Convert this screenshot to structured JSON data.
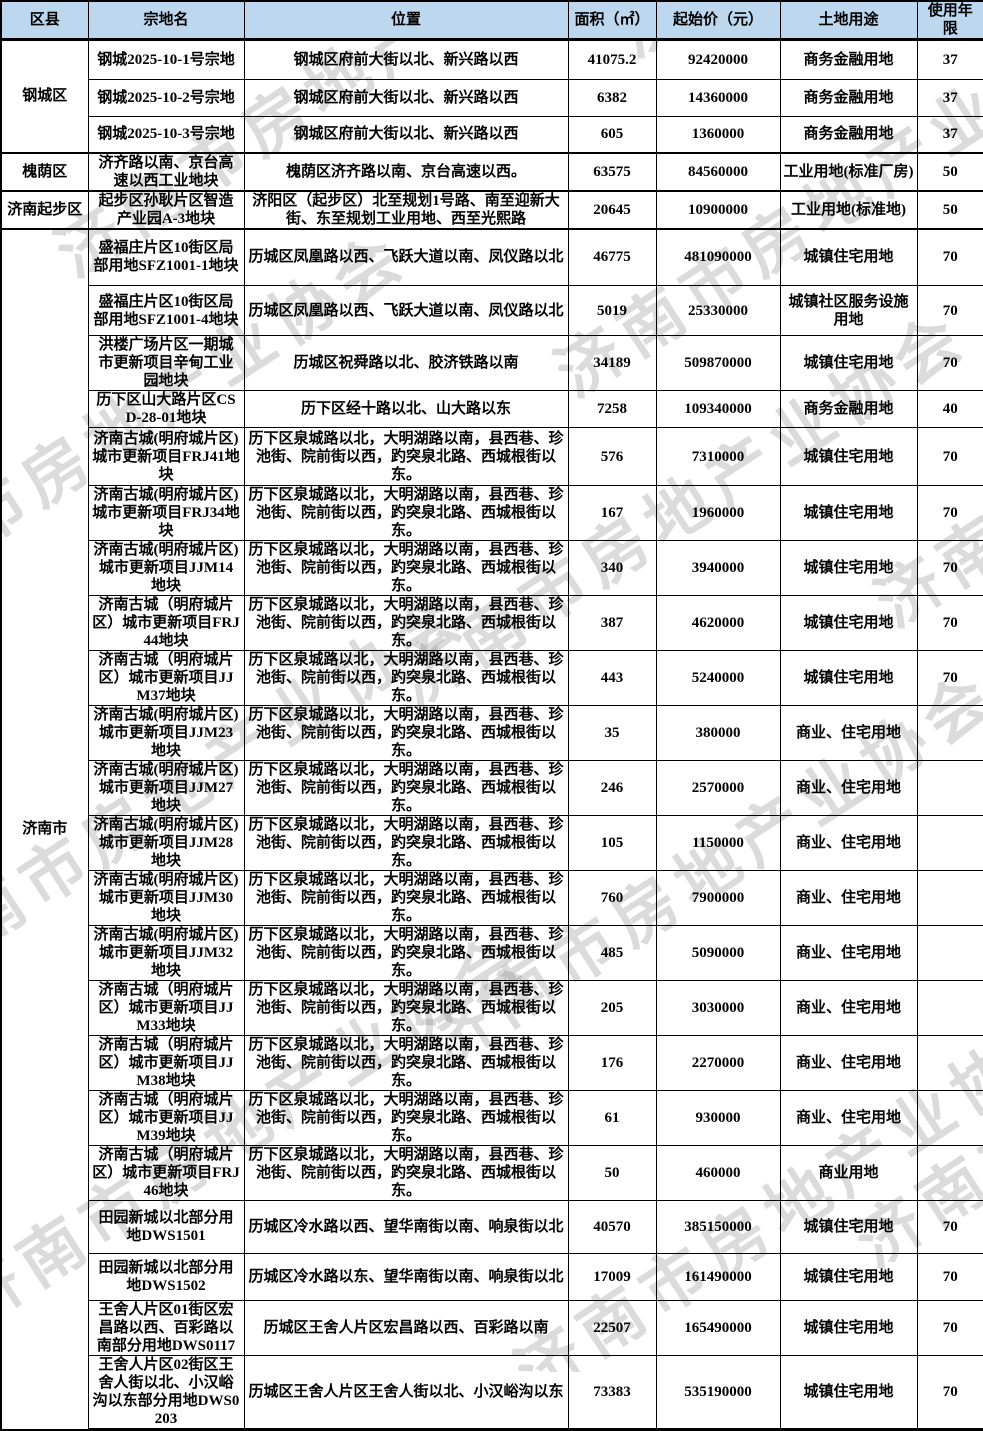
{
  "watermark": {
    "text": "济南市房地产业协会",
    "color_hint": "#d5d5d5"
  },
  "colors": {
    "header_bg": "#bdd7ee",
    "border": "#000000",
    "text": "#000000"
  },
  "table": {
    "columns": [
      {
        "label": "区县"
      },
      {
        "label": "宗地名"
      },
      {
        "label": "位置"
      },
      {
        "label": "面积（㎡）"
      },
      {
        "label": "起始价（元）"
      },
      {
        "label": "土地用途"
      },
      {
        "label": "使用年限"
      }
    ],
    "district_groups": [
      {
        "label": "钢城区",
        "rows": 3
      },
      {
        "label": "槐荫区",
        "rows": 1
      },
      {
        "label": "济南起步区",
        "rows": 1
      },
      {
        "label": "济南市",
        "rows": 22
      }
    ],
    "rows": [
      {
        "name": "钢城2025-10-1号宗地",
        "location": "钢城区府前大街以北、新兴路以西",
        "area": "41075.2",
        "price": "92420000",
        "use": "商务金融用地",
        "years": "37"
      },
      {
        "name": "钢城2025-10-2号宗地",
        "location": "钢城区府前大街以北、新兴路以西",
        "area": "6382",
        "price": "14360000",
        "use": "商务金融用地",
        "years": "37"
      },
      {
        "name": "钢城2025-10-3号宗地",
        "location": "钢城区府前大街以北、新兴路以西",
        "area": "605",
        "price": "1360000",
        "use": "商务金融用地",
        "years": "37"
      },
      {
        "name": "济齐路以南、京台高速以西工业地块",
        "location": "槐荫区济齐路以南、京台高速以西。",
        "area": "63575",
        "price": "84560000",
        "use": "工业用地(标准厂房)",
        "years": "50"
      },
      {
        "name": "起步区孙耿片区智造产业园A-3地块",
        "location": "济阳区（起步区）北至规划1号路、南至迎新大街、东至规划工业用地、西至光熙路",
        "area": "20645",
        "price": "10900000",
        "use": "工业用地(标准地)",
        "years": "50"
      },
      {
        "name": "盛福庄片区10街区局部用地SFZ1001-1地块",
        "location": "历城区凤凰路以西、飞跃大道以南、凤仪路以北",
        "area": "46775",
        "price": "481090000",
        "use": "城镇住宅用地",
        "years": "70"
      },
      {
        "name": "盛福庄片区10街区局部用地SFZ1001-4地块",
        "location": "历城区凤凰路以西、飞跃大道以南、凤仪路以北",
        "area": "5019",
        "price": "25330000",
        "use": "城镇社区服务设施用地",
        "years": "70"
      },
      {
        "name": "洪楼广场片区一期城市更新项目辛甸工业园地块",
        "location": "历城区祝舜路以北、胶济铁路以南",
        "area": "34189",
        "price": "509870000",
        "use": "城镇住宅用地",
        "years": "70"
      },
      {
        "name": "历下区山大路片区CSD-28-01地块",
        "location": "历下区经十路以北、山大路以东",
        "area": "7258",
        "price": "109340000",
        "use": "商务金融用地",
        "years": "40"
      },
      {
        "name": "济南古城(明府城片区)城市更新项目FRJ41地块",
        "location": "历下区泉城路以北，大明湖路以南，县西巷、珍池街、院前街以西，趵突泉北路、西城根街以东。",
        "area": "576",
        "price": "7310000",
        "use": "城镇住宅用地",
        "years": "70"
      },
      {
        "name": "济南古城(明府城片区)城市更新项目FRJ34地块",
        "location": "历下区泉城路以北，大明湖路以南，县西巷、珍池街、院前街以西，趵突泉北路、西城根街以东。",
        "area": "167",
        "price": "1960000",
        "use": "城镇住宅用地",
        "years": "70"
      },
      {
        "name": "济南古城(明府城片区)城市更新项目JJM14地块",
        "location": "历下区泉城路以北，大明湖路以南，县西巷、珍池街、院前街以西，趵突泉北路、西城根街以东。",
        "area": "340",
        "price": "3940000",
        "use": "城镇住宅用地",
        "years": "70"
      },
      {
        "name": "济南古城（明府城片区）城市更新项目FRJ44地块",
        "location": "历下区泉城路以北，大明湖路以南，县西巷、珍池街、院前街以西，趵突泉北路、西城根街以东。",
        "area": "387",
        "price": "4620000",
        "use": "城镇住宅用地",
        "years": "70"
      },
      {
        "name": "济南古城（明府城片区）城市更新项目JJM37地块",
        "location": "历下区泉城路以北，大明湖路以南，县西巷、珍池街、院前街以西，趵突泉北路、西城根街以东。",
        "area": "443",
        "price": "5240000",
        "use": "城镇住宅用地",
        "years": "70"
      },
      {
        "name": "济南古城(明府城片区)城市更新项目JJM23地块",
        "location": "历下区泉城路以北，大明湖路以南，县西巷、珍池街、院前街以西，趵突泉北路、西城根街以东。",
        "area": "35",
        "price": "380000",
        "use": "商业、住宅用地",
        "years": ""
      },
      {
        "name": "济南古城(明府城片区)城市更新项目JJM27地块",
        "location": "历下区泉城路以北，大明湖路以南，县西巷、珍池街、院前街以西，趵突泉北路、西城根街以东。",
        "area": "246",
        "price": "2570000",
        "use": "商业、住宅用地",
        "years": ""
      },
      {
        "name": "济南古城(明府城片区)城市更新项目JJM28地块",
        "location": "历下区泉城路以北，大明湖路以南，县西巷、珍池街、院前街以西，趵突泉北路、西城根街以东。",
        "area": "105",
        "price": "1150000",
        "use": "商业、住宅用地",
        "years": ""
      },
      {
        "name": "济南古城(明府城片区)城市更新项目JJM30地块",
        "location": "历下区泉城路以北，大明湖路以南，县西巷、珍池街、院前街以西，趵突泉北路、西城根街以东。",
        "area": "760",
        "price": "7900000",
        "use": "商业、住宅用地",
        "years": ""
      },
      {
        "name": "济南古城(明府城片区)城市更新项目JJM32地块",
        "location": "历下区泉城路以北，大明湖路以南，县西巷、珍池街、院前街以西，趵突泉北路、西城根街以东。",
        "area": "485",
        "price": "5090000",
        "use": "商业、住宅用地",
        "years": ""
      },
      {
        "name": "济南古城（明府城片区）城市更新项目JJM33地块",
        "location": "历下区泉城路以北，大明湖路以南，县西巷、珍池街、院前街以西，趵突泉北路、西城根街以东。",
        "area": "205",
        "price": "3030000",
        "use": "商业、住宅用地",
        "years": ""
      },
      {
        "name": "济南古城（明府城片区）城市更新项目JJM38地块",
        "location": "历下区泉城路以北，大明湖路以南，县西巷、珍池街、院前街以西，趵突泉北路、西城根街以东。",
        "area": "176",
        "price": "2270000",
        "use": "商业、住宅用地",
        "years": ""
      },
      {
        "name": "济南古城（明府城片区）城市更新项目JJM39地块",
        "location": "历下区泉城路以北，大明湖路以南，县西巷、珍池街、院前街以西，趵突泉北路、西城根街以东。",
        "area": "61",
        "price": "930000",
        "use": "商业、住宅用地",
        "years": ""
      },
      {
        "name": "济南古城（明府城片区）城市更新项目FRJ46地块",
        "location": "历下区泉城路以北，大明湖路以南，县西巷、珍池街、院前街以西，趵突泉北路、西城根街以东。",
        "area": "50",
        "price": "460000",
        "use": "商业用地",
        "years": ""
      },
      {
        "name": "田园新城以北部分用地DWS1501",
        "location": "历城区冷水路以西、望华南街以南、响泉街以北",
        "area": "40570",
        "price": "385150000",
        "use": "城镇住宅用地",
        "years": "70"
      },
      {
        "name": "田园新城以北部分用地DWS1502",
        "location": "历城区冷水路以东、望华南街以南、响泉街以北",
        "area": "17009",
        "price": "161490000",
        "use": "城镇住宅用地",
        "years": "70"
      },
      {
        "name": "王舍人片区01街区宏昌路以西、百彩路以南部分用地DWS0117",
        "location": "历城区王舍人片区宏昌路以西、百彩路以南",
        "area": "22507",
        "price": "165490000",
        "use": "城镇住宅用地",
        "years": "70"
      },
      {
        "name": "王舍人片区02街区王舍人街以北、小汉峪沟以东部分用地DWS0203",
        "location": "历城区王舍人片区王舍人街以北、小汉峪沟以东",
        "area": "73383",
        "price": "535190000",
        "use": "城镇住宅用地",
        "years": "70"
      }
    ]
  }
}
